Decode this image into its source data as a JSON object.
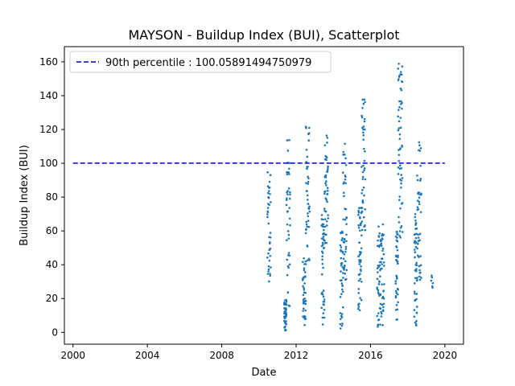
{
  "chart_data": {
    "type": "scatter",
    "title": "MAYSON - Buildup Index (BUI), Scatterplot",
    "xlabel": "Date",
    "ylabel": "Buildup Index (BUI)",
    "xlim": [
      "1999-07-15",
      "2021-01-01"
    ],
    "ylim": [
      -7,
      169
    ],
    "xticks": [
      "2000",
      "2004",
      "2008",
      "2012",
      "2016",
      "2020"
    ],
    "xtick_dates": [
      "2000-01-01",
      "2004-01-01",
      "2008-01-01",
      "2012-01-01",
      "2016-01-01",
      "2020-01-01"
    ],
    "yticks": [
      0,
      20,
      40,
      60,
      80,
      100,
      120,
      140,
      160
    ],
    "grid": false,
    "legend": {
      "placement": "top-left",
      "entries": [
        "90th percentile : 100.05891494750979"
      ]
    },
    "percentile_line": {
      "label": "90th percentile : 100.05891494750979",
      "value": 100.05891494750979,
      "x_start": "2000-01-01",
      "x_end": "2019-12-31",
      "color": "#0000cc",
      "style": "dashed"
    },
    "series": [
      {
        "color": "#1f77b4",
        "segments": [
          {
            "start": "2010-06-15",
            "end": "2010-08-20",
            "min": 22,
            "max": 95,
            "n": 40
          },
          {
            "start": "2011-05-10",
            "end": "2011-06-25",
            "min": 1,
            "max": 20,
            "n": 45
          },
          {
            "start": "2011-06-25",
            "end": "2011-09-05",
            "min": 15,
            "max": 114,
            "n": 45
          },
          {
            "start": "2012-05-10",
            "end": "2012-07-10",
            "min": 4,
            "max": 45,
            "n": 45
          },
          {
            "start": "2012-07-10",
            "end": "2012-09-20",
            "min": 40,
            "max": 123,
            "n": 45
          },
          {
            "start": "2013-05-15",
            "end": "2013-07-10",
            "min": 3,
            "max": 70,
            "n": 45
          },
          {
            "start": "2013-07-10",
            "end": "2013-09-20",
            "min": 50,
            "max": 117,
            "n": 45
          },
          {
            "start": "2014-05-15",
            "end": "2014-07-10",
            "min": 2,
            "max": 60,
            "n": 40
          },
          {
            "start": "2014-07-10",
            "end": "2014-09-20",
            "min": 30,
            "max": 119,
            "n": 45
          },
          {
            "start": "2015-05-05",
            "end": "2015-07-10",
            "min": 11,
            "max": 76,
            "n": 50
          },
          {
            "start": "2015-07-10",
            "end": "2015-09-20",
            "min": 60,
            "max": 141,
            "n": 45
          },
          {
            "start": "2016-05-10",
            "end": "2016-09-25",
            "min": 3,
            "max": 64,
            "n": 80
          },
          {
            "start": "2017-05-10",
            "end": "2017-06-25",
            "min": 7,
            "max": 60,
            "n": 40
          },
          {
            "start": "2017-06-25",
            "end": "2017-09-20",
            "min": 50,
            "max": 161,
            "n": 60
          },
          {
            "start": "2018-05-10",
            "end": "2018-07-05",
            "min": 4,
            "max": 72,
            "n": 45
          },
          {
            "start": "2018-07-05",
            "end": "2018-09-25",
            "min": 30,
            "max": 118,
            "n": 45
          },
          {
            "start": "2019-04-10",
            "end": "2019-05-10",
            "min": 26,
            "max": 35,
            "n": 6
          }
        ]
      }
    ]
  }
}
